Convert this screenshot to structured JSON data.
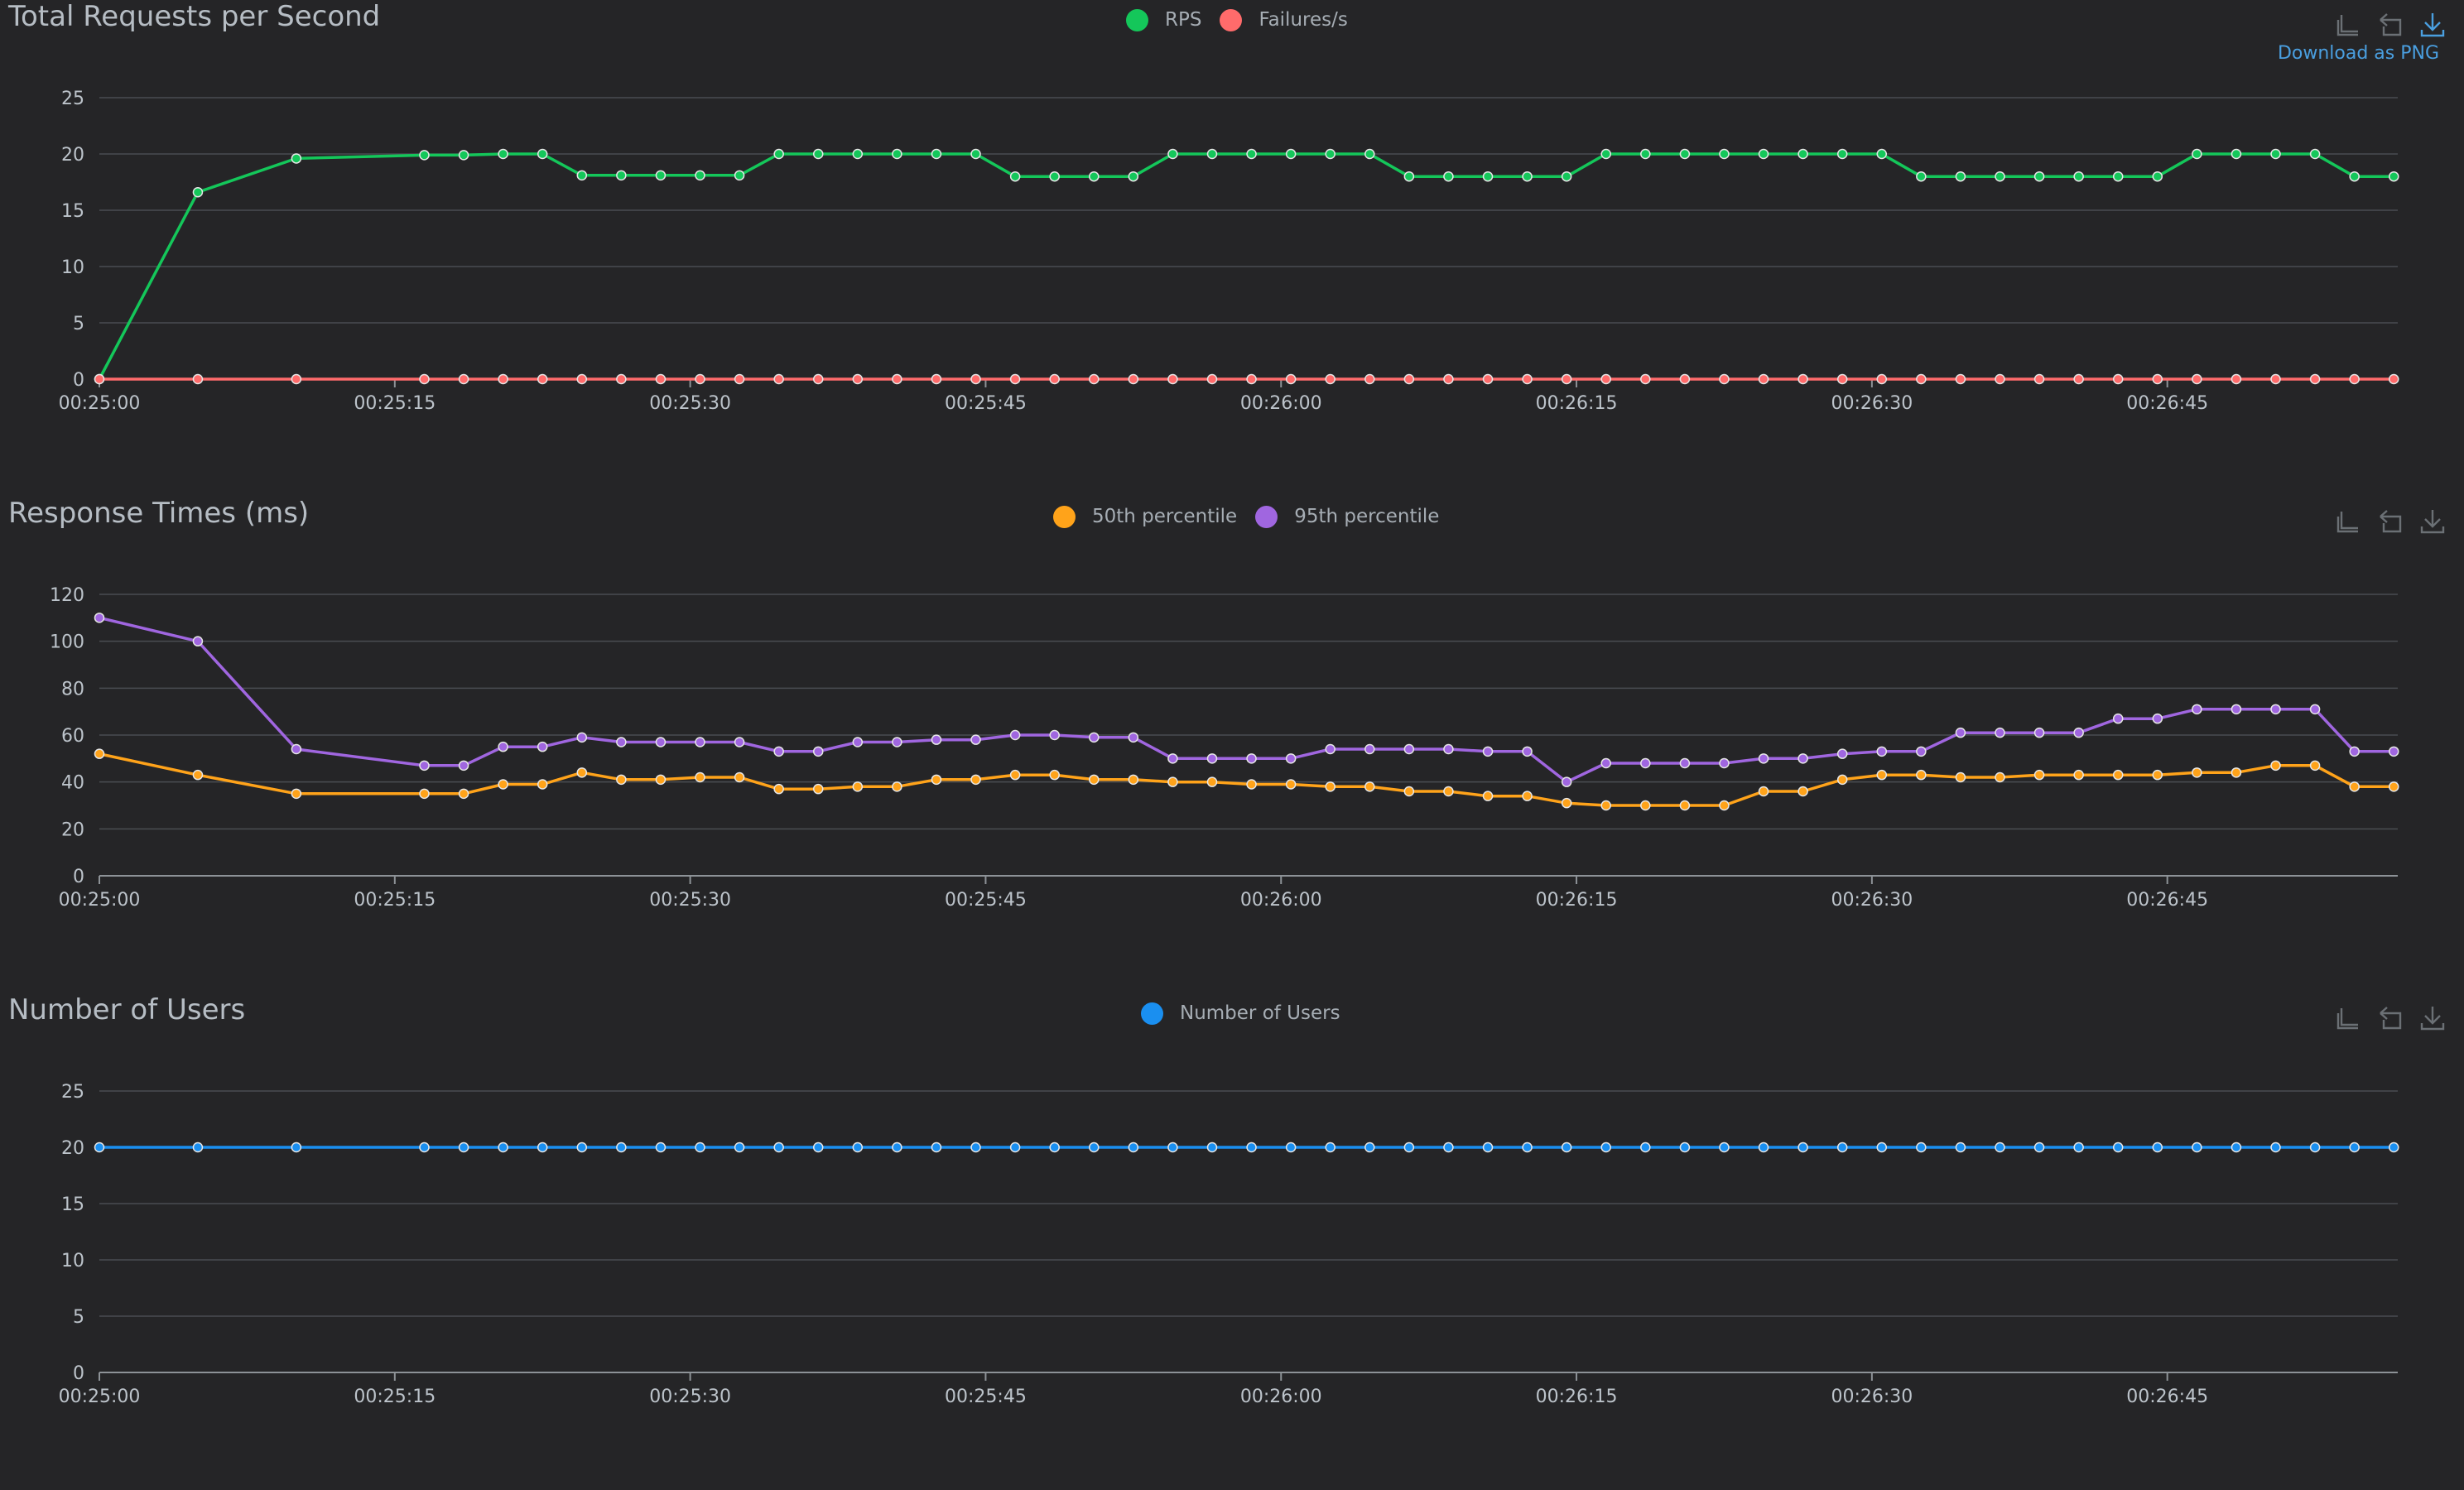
{
  "toolbox": {
    "download_label": "Download as PNG",
    "icons": [
      "zoom-icon",
      "zoom-reset-icon",
      "download-icon"
    ]
  },
  "chart_data": [
    {
      "type": "line",
      "title": "Total Requests per Second",
      "x_ticks": [
        "00:25:00",
        "00:25:15",
        "00:25:30",
        "00:25:45",
        "00:26:00",
        "00:26:15",
        "00:26:30",
        "00:26:45"
      ],
      "x_range_seconds_after_0025": [
        0,
        116.7
      ],
      "ylim": [
        0,
        25
      ],
      "y_ticks": [
        "0",
        "5",
        "10",
        "15",
        "20",
        "25"
      ],
      "grid": true,
      "legend_position": "top-center",
      "x_seconds": [
        0,
        5,
        10,
        16.5,
        18.5,
        20.5,
        22.5,
        24.5,
        26.5,
        28.5,
        30.5,
        32.5,
        34.5,
        36.5,
        38.5,
        40.5,
        42.5,
        44.5,
        46.5,
        48.5,
        50.5,
        52.5,
        54.5,
        56.5,
        58.5,
        60.5,
        62.5,
        64.5,
        66.5,
        68.5,
        70.5,
        72.5,
        74.5,
        76.5,
        78.5,
        80.5,
        82.5,
        84.5,
        86.5,
        88.5,
        90.5,
        92.5,
        94.5,
        96.5,
        98.5,
        100.5,
        102.5,
        104.5,
        106.5,
        108.5,
        110.5,
        112.5,
        114.5,
        116.5
      ],
      "series": [
        {
          "name": "RPS",
          "color": "#14c75a",
          "values": [
            0,
            16.6,
            19.6,
            19.9,
            19.9,
            20,
            20,
            18.1,
            18.1,
            18.1,
            18.1,
            18.1,
            20,
            20,
            20,
            20,
            20,
            20,
            18,
            18,
            18,
            18,
            20,
            20,
            20,
            20,
            20,
            20,
            18,
            18,
            18,
            18,
            18,
            20,
            20,
            20,
            20,
            20,
            20,
            20,
            20,
            18,
            18,
            18,
            18,
            18,
            18,
            18,
            20,
            20,
            20,
            20,
            18,
            18
          ]
        },
        {
          "name": "Failures/s",
          "color": "#ff6b6b",
          "values": [
            0,
            0,
            0,
            0,
            0,
            0,
            0,
            0,
            0,
            0,
            0,
            0,
            0,
            0,
            0,
            0,
            0,
            0,
            0,
            0,
            0,
            0,
            0,
            0,
            0,
            0,
            0,
            0,
            0,
            0,
            0,
            0,
            0,
            0,
            0,
            0,
            0,
            0,
            0,
            0,
            0,
            0,
            0,
            0,
            0,
            0,
            0,
            0,
            0,
            0,
            0,
            0,
            0,
            0
          ]
        }
      ]
    },
    {
      "type": "line",
      "title": "Response Times (ms)",
      "x_ticks": [
        "00:25:00",
        "00:25:15",
        "00:25:30",
        "00:25:45",
        "00:26:00",
        "00:26:15",
        "00:26:30",
        "00:26:45"
      ],
      "x_range_seconds_after_0025": [
        0,
        116.7
      ],
      "ylim": [
        0,
        120
      ],
      "y_ticks": [
        "0",
        "20",
        "40",
        "60",
        "80",
        "100",
        "120"
      ],
      "grid": true,
      "legend_position": "top-center",
      "x_seconds": [
        0,
        5,
        10,
        16.5,
        18.5,
        20.5,
        22.5,
        24.5,
        26.5,
        28.5,
        30.5,
        32.5,
        34.5,
        36.5,
        38.5,
        40.5,
        42.5,
        44.5,
        46.5,
        48.5,
        50.5,
        52.5,
        54.5,
        56.5,
        58.5,
        60.5,
        62.5,
        64.5,
        66.5,
        68.5,
        70.5,
        72.5,
        74.5,
        76.5,
        78.5,
        80.5,
        82.5,
        84.5,
        86.5,
        88.5,
        90.5,
        92.5,
        94.5,
        96.5,
        98.5,
        100.5,
        102.5,
        104.5,
        106.5,
        108.5,
        110.5,
        112.5,
        114.5,
        116.5
      ],
      "series": [
        {
          "name": "50th percentile",
          "color": "#ffa31a",
          "values": [
            52,
            43,
            35,
            35,
            35,
            39,
            39,
            44,
            41,
            41,
            42,
            42,
            37,
            37,
            38,
            38,
            41,
            41,
            43,
            43,
            41,
            41,
            40,
            40,
            39,
            39,
            38,
            38,
            36,
            36,
            34,
            34,
            31,
            30,
            30,
            30,
            30,
            36,
            36,
            41,
            43,
            43,
            42,
            42,
            43,
            43,
            43,
            43,
            44,
            44,
            47,
            47,
            38,
            38
          ]
        },
        {
          "name": "95th percentile",
          "color": "#a066e0",
          "values": [
            110,
            100,
            54,
            47,
            47,
            55,
            55,
            59,
            57,
            57,
            57,
            57,
            53,
            53,
            57,
            57,
            58,
            58,
            60,
            60,
            59,
            59,
            50,
            50,
            50,
            50,
            54,
            54,
            54,
            54,
            53,
            53,
            40,
            48,
            48,
            48,
            48,
            50,
            50,
            52,
            53,
            53,
            61,
            61,
            61,
            61,
            67,
            67,
            71,
            71,
            71,
            71,
            53,
            53
          ]
        }
      ]
    },
    {
      "type": "line",
      "title": "Number of Users",
      "x_ticks": [
        "00:25:00",
        "00:25:15",
        "00:25:30",
        "00:25:45",
        "00:26:00",
        "00:26:15",
        "00:26:30",
        "00:26:45"
      ],
      "x_range_seconds_after_0025": [
        0,
        116.7
      ],
      "ylim": [
        0,
        25
      ],
      "y_ticks": [
        "0",
        "5",
        "10",
        "15",
        "20",
        "25"
      ],
      "grid": true,
      "legend_position": "top-center",
      "x_seconds": [
        0,
        5,
        10,
        16.5,
        18.5,
        20.5,
        22.5,
        24.5,
        26.5,
        28.5,
        30.5,
        32.5,
        34.5,
        36.5,
        38.5,
        40.5,
        42.5,
        44.5,
        46.5,
        48.5,
        50.5,
        52.5,
        54.5,
        56.5,
        58.5,
        60.5,
        62.5,
        64.5,
        66.5,
        68.5,
        70.5,
        72.5,
        74.5,
        76.5,
        78.5,
        80.5,
        82.5,
        84.5,
        86.5,
        88.5,
        90.5,
        92.5,
        94.5,
        96.5,
        98.5,
        100.5,
        102.5,
        104.5,
        106.5,
        108.5,
        110.5,
        112.5,
        114.5,
        116.5
      ],
      "series": [
        {
          "name": "Number of Users",
          "color": "#1a8ff0",
          "values": [
            20,
            20,
            20,
            20,
            20,
            20,
            20,
            20,
            20,
            20,
            20,
            20,
            20,
            20,
            20,
            20,
            20,
            20,
            20,
            20,
            20,
            20,
            20,
            20,
            20,
            20,
            20,
            20,
            20,
            20,
            20,
            20,
            20,
            20,
            20,
            20,
            20,
            20,
            20,
            20,
            20,
            20,
            20,
            20,
            20,
            20,
            20,
            20,
            20,
            20,
            20,
            20,
            20,
            20
          ]
        }
      ]
    }
  ]
}
